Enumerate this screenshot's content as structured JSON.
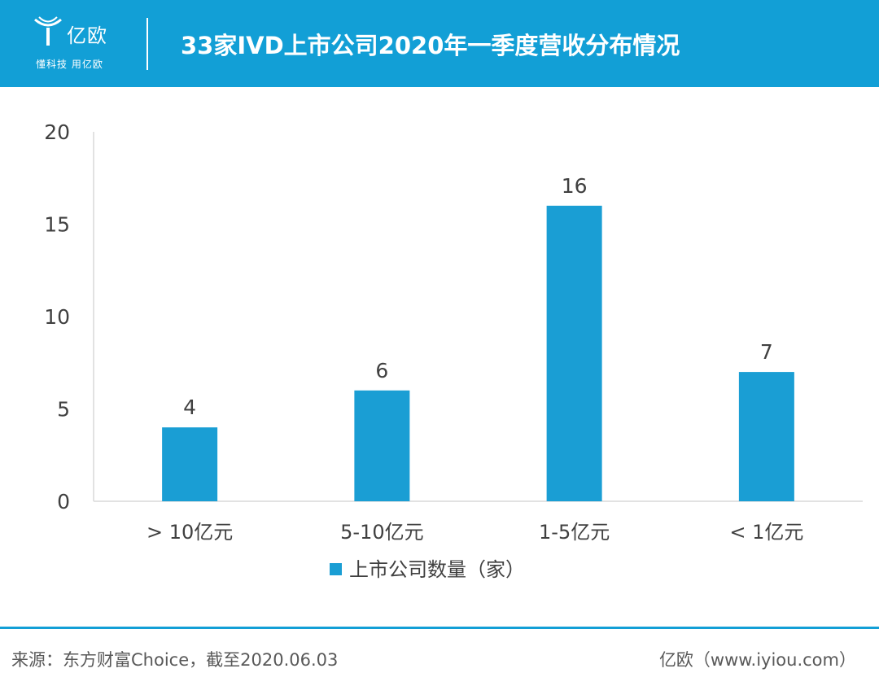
{
  "header": {
    "brand_name": "亿欧",
    "slogan": "懂科技 用亿欧",
    "title": "33家IVD上市公司2020年一季度营收分布情况",
    "accent_color": "#129fd6"
  },
  "chart_data": {
    "type": "bar",
    "categories": [
      "> 10亿元",
      "5-10亿元",
      "1-5亿元",
      "< 1亿元"
    ],
    "series": [
      {
        "name": "上市公司数量（家）",
        "values": [
          4,
          6,
          16,
          7
        ],
        "color": "#1a9ed4"
      }
    ],
    "y_ticks": [
      0,
      5,
      10,
      15,
      20
    ],
    "ylim": [
      0,
      20
    ],
    "grid": false,
    "legend": "bottom-center",
    "data_labels": true
  },
  "footer": {
    "source": "来源：东方财富Choice，截至2020.06.03",
    "brand": "亿欧（www.iyiou.com）"
  }
}
